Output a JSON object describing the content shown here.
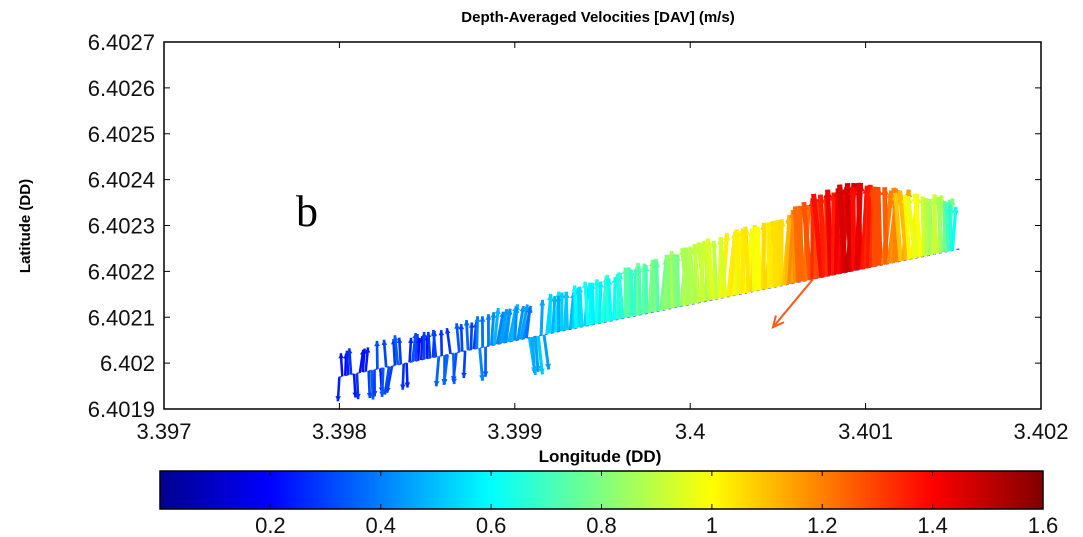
{
  "chart_data": {
    "type": "quiver",
    "title": "Depth-Averaged Velocities [DAV] (m/s)",
    "xlabel": "Longitude (DD)",
    "ylabel": "Latitude (DD)",
    "panel_label": "b",
    "xlim": [
      3.397,
      3.402
    ],
    "ylim": [
      6.4019,
      6.4027
    ],
    "xticks": [
      "3.397",
      "3.398",
      "3.399",
      "3.4",
      "3.401",
      "3.402"
    ],
    "yticks": [
      "6.4019",
      "6.402",
      "6.4021",
      "6.4022",
      "6.4023",
      "6.4024",
      "6.4025",
      "6.4026",
      "6.4027"
    ],
    "colorbar": {
      "range": [
        0.0,
        1.6
      ],
      "colormap": "jet",
      "ticks": [
        "0.2",
        "0.4",
        "0.6",
        "0.8",
        "1",
        "1.2",
        "1.4",
        "1.6"
      ]
    },
    "track": {
      "start": [
        3.398,
        6.40197
      ],
      "end": [
        3.40155,
        6.40225
      ]
    },
    "series": [
      {
        "x": [
          3.398,
          3.39815,
          3.3983,
          3.39845,
          3.3986,
          3.39875,
          3.3989,
          3.39905,
          3.3992,
          3.39935,
          3.3995,
          3.39965,
          3.3998,
          3.39995,
          3.4001,
          3.40025,
          3.4004,
          3.40055,
          3.4007,
          3.40085,
          3.401,
          3.40115,
          3.4013,
          3.40145,
          3.4015
        ],
        "u_dir": [
          -0.2,
          0.3,
          -0.3,
          0.2,
          -0.2,
          0.1,
          0.3,
          0.4,
          0.2,
          0.1,
          0.0,
          -0.1,
          0.1,
          0.0,
          -0.1,
          0.1,
          0.0,
          0.1,
          -0.1,
          0.05,
          0.0,
          0.1,
          -0.1,
          0.1,
          0.0
        ],
        "speed": [
          0.25,
          0.28,
          0.3,
          0.27,
          0.32,
          0.35,
          0.45,
          0.42,
          0.5,
          0.55,
          0.62,
          0.7,
          0.78,
          0.85,
          0.92,
          1.0,
          1.05,
          1.12,
          1.3,
          1.45,
          1.38,
          1.2,
          1.0,
          0.8,
          0.62
        ]
      }
    ],
    "annotation": {
      "type": "arrow",
      "color": "#ff5a14"
    }
  }
}
